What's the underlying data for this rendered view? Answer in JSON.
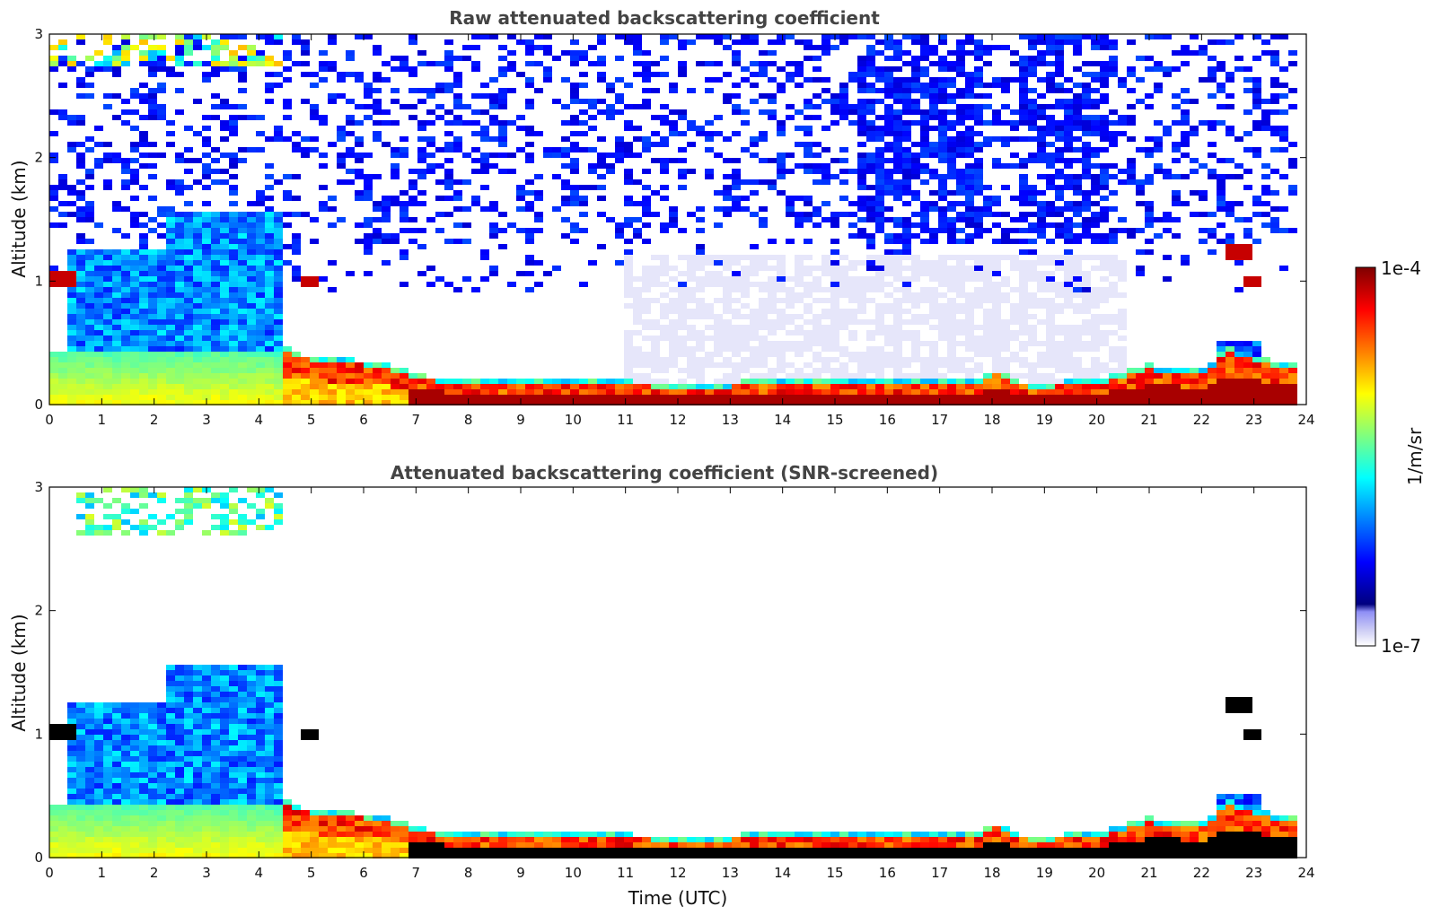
{
  "colors": {
    "jet": [
      "#00007f",
      "#0000ff",
      "#007fff",
      "#00ffff",
      "#7fff7f",
      "#ffff00",
      "#ff7f00",
      "#ff0000",
      "#7f0000"
    ],
    "clear_air": "#e6e6fa",
    "saturated": "#000000"
  },
  "colorbar": {
    "label": "1/m/sr",
    "max_label": "1e-4",
    "min_label": "1e-7",
    "range": [
      1e-07,
      0.0001
    ],
    "scale": "log"
  },
  "chart_data": [
    {
      "type": "heatmap",
      "title": "Raw attenuated backscattering coefficient",
      "xlabel": "",
      "ylabel": "Altitude (km)",
      "xlim": [
        0,
        24
      ],
      "ylim": [
        0,
        3
      ],
      "xticks": [
        "0",
        "1",
        "2",
        "3",
        "4",
        "5",
        "6",
        "7",
        "8",
        "9",
        "10",
        "11",
        "12",
        "13",
        "14",
        "15",
        "16",
        "17",
        "18",
        "19",
        "20",
        "21",
        "22",
        "23",
        "24"
      ],
      "yticks": [
        "0",
        "1",
        "2",
        "3"
      ],
      "screened": false,
      "boundary_layer_top_km": [
        [
          0,
          0.45
        ],
        [
          1,
          0.45
        ],
        [
          2,
          0.45
        ],
        [
          3,
          0.45
        ],
        [
          4,
          0.45
        ],
        [
          4.5,
          0.42
        ],
        [
          5,
          0.35
        ],
        [
          6,
          0.32
        ],
        [
          6.5,
          0.28
        ],
        [
          7,
          0.2
        ],
        [
          8,
          0.17
        ],
        [
          9,
          0.16
        ],
        [
          10,
          0.16
        ],
        [
          11,
          0.15
        ],
        [
          12,
          0.14
        ],
        [
          13,
          0.14
        ],
        [
          13.5,
          0.17
        ],
        [
          14,
          0.16
        ],
        [
          15,
          0.15
        ],
        [
          16,
          0.15
        ],
        [
          17,
          0.15
        ],
        [
          17.8,
          0.15
        ],
        [
          18,
          0.25
        ],
        [
          18.5,
          0.15
        ],
        [
          19,
          0.14
        ],
        [
          20,
          0.16
        ],
        [
          21,
          0.28
        ],
        [
          22,
          0.25
        ],
        [
          22.5,
          0.42
        ],
        [
          23,
          0.35
        ],
        [
          23.8,
          0.28
        ]
      ],
      "cloud_layers_km": [
        {
          "t_start": 0,
          "t_end": 0.6,
          "base": 0.95,
          "top": 1.08
        },
        {
          "t_start": 4.8,
          "t_end": 5.1,
          "base": 0.95,
          "top": 1.05
        },
        {
          "t_start": 22.5,
          "t_end": 22.9,
          "base": 1.15,
          "top": 1.3
        },
        {
          "t_start": 22.8,
          "t_end": 23.1,
          "base": 0.95,
          "top": 1.05
        }
      ]
    },
    {
      "type": "heatmap",
      "title": "Attenuated backscattering coefficient (SNR-screened)",
      "xlabel": "Time (UTC)",
      "ylabel": "Altitude (km)",
      "xlim": [
        0,
        24
      ],
      "ylim": [
        0,
        3
      ],
      "xticks": [
        "0",
        "1",
        "2",
        "3",
        "4",
        "5",
        "6",
        "7",
        "8",
        "9",
        "10",
        "11",
        "12",
        "13",
        "14",
        "15",
        "16",
        "17",
        "18",
        "19",
        "20",
        "21",
        "22",
        "23",
        "24"
      ],
      "yticks": [
        "0",
        "1",
        "2",
        "3"
      ],
      "screened": true
    }
  ]
}
